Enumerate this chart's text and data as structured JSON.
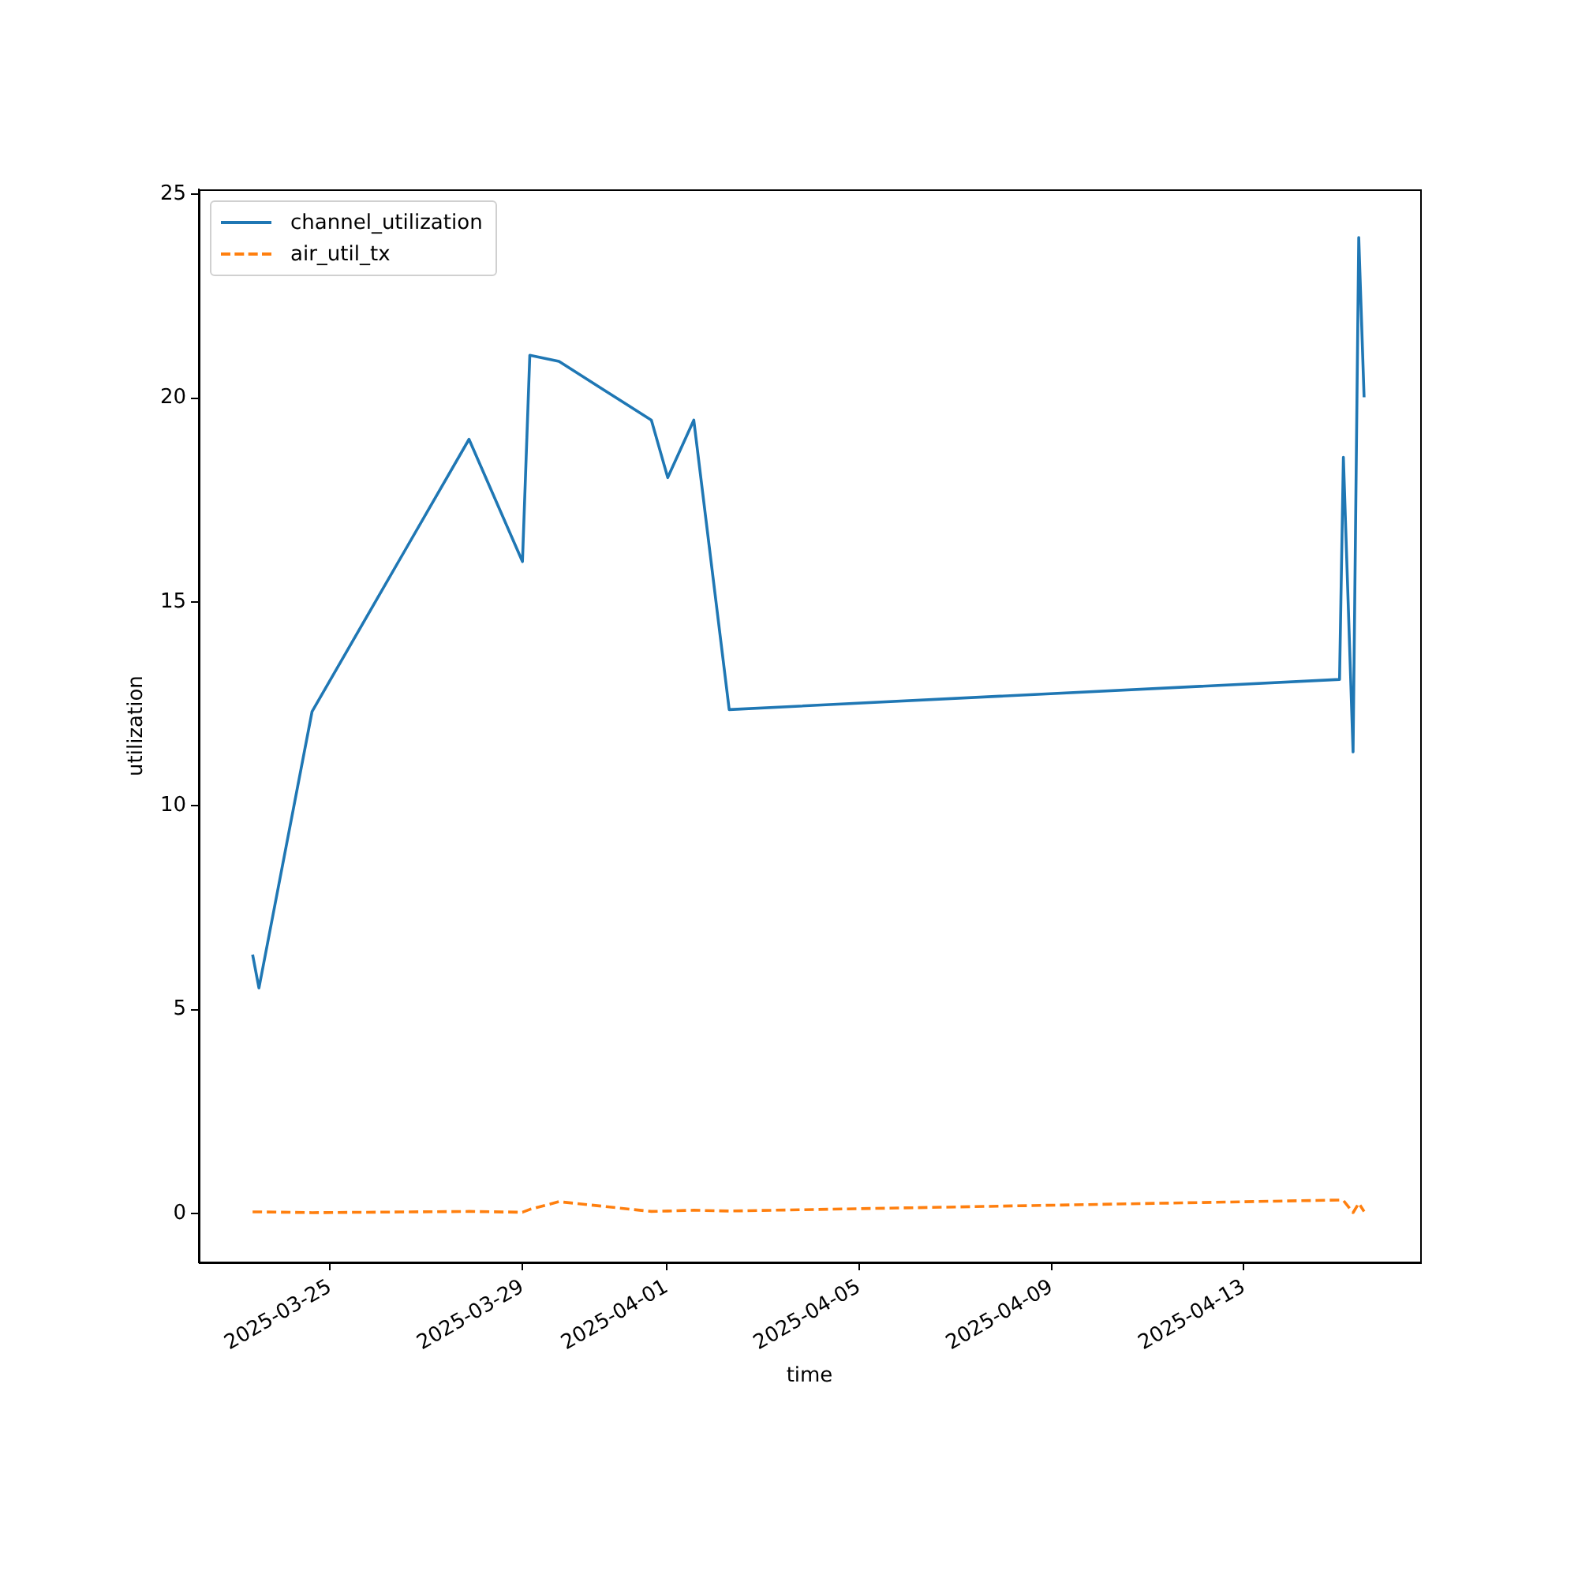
{
  "chart_data": {
    "type": "line",
    "xlabel": "time",
    "ylabel": "utilization",
    "x": [
      "2025-03-23T09:20",
      "2025-03-23T12:30",
      "2025-03-24T15:00",
      "2025-03-27T21:20",
      "2025-03-29T00:00",
      "2025-03-29T03:40",
      "2025-03-29T18:15",
      "2025-03-31T16:20",
      "2025-04-01T00:30",
      "2025-04-01T13:30",
      "2025-04-02T07:10",
      "2025-04-14T23:45",
      "2025-04-15T01:40",
      "2025-04-15T06:30",
      "2025-04-15T09:20",
      "2025-04-15T12:00"
    ],
    "series": [
      {
        "name": "channel_utilization",
        "color": "#1f77b4",
        "line_style": "solid",
        "values": [
          6.35,
          5.53,
          12.31,
          18.99,
          15.99,
          21.05,
          20.9,
          19.46,
          18.05,
          19.46,
          12.36,
          13.1,
          18.55,
          11.32,
          23.94,
          20.02
        ]
      },
      {
        "name": "air_util_tx",
        "color": "#ff7f0e",
        "line_style": "dashed",
        "values": [
          0.04,
          0.04,
          0.02,
          0.05,
          0.03,
          0.1,
          0.29,
          0.05,
          0.06,
          0.08,
          0.06,
          0.33,
          0.32,
          0.02,
          0.25,
          0.05
        ]
      }
    ],
    "xlim": [
      "2025-03-22T06:30",
      "2025-04-16T16:00"
    ],
    "xticks": [
      "2025-03-25",
      "2025-03-29",
      "2025-04-01",
      "2025-04-05",
      "2025-04-09",
      "2025-04-13"
    ],
    "ylim": [
      -1.2,
      25.12
    ],
    "yticks": [
      0,
      5,
      10,
      15,
      20,
      25
    ],
    "grid": false,
    "legend": "top left",
    "marker": "none"
  }
}
